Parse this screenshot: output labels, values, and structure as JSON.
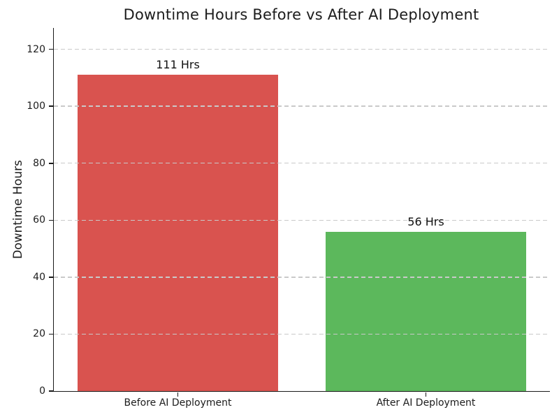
{
  "chart_data": {
    "type": "bar",
    "title": "Downtime Hours Before vs After AI Deployment",
    "xlabel": "",
    "ylabel": "Downtime Hours",
    "categories": [
      "Before AI Deployment",
      "After AI Deployment"
    ],
    "values": [
      111,
      56
    ],
    "bar_labels": [
      "111 Hrs",
      "56 Hrs"
    ],
    "bar_colors": [
      "#d9534f",
      "#5cb85c"
    ],
    "yticks": [
      0,
      20,
      40,
      60,
      80,
      100,
      120
    ],
    "ylim": [
      0,
      127.5
    ],
    "grid": "horizontal dashed, drawn above bars",
    "grid_color": "#c9c9c9",
    "spine_color": "#1a1a1a",
    "legend": "none"
  }
}
